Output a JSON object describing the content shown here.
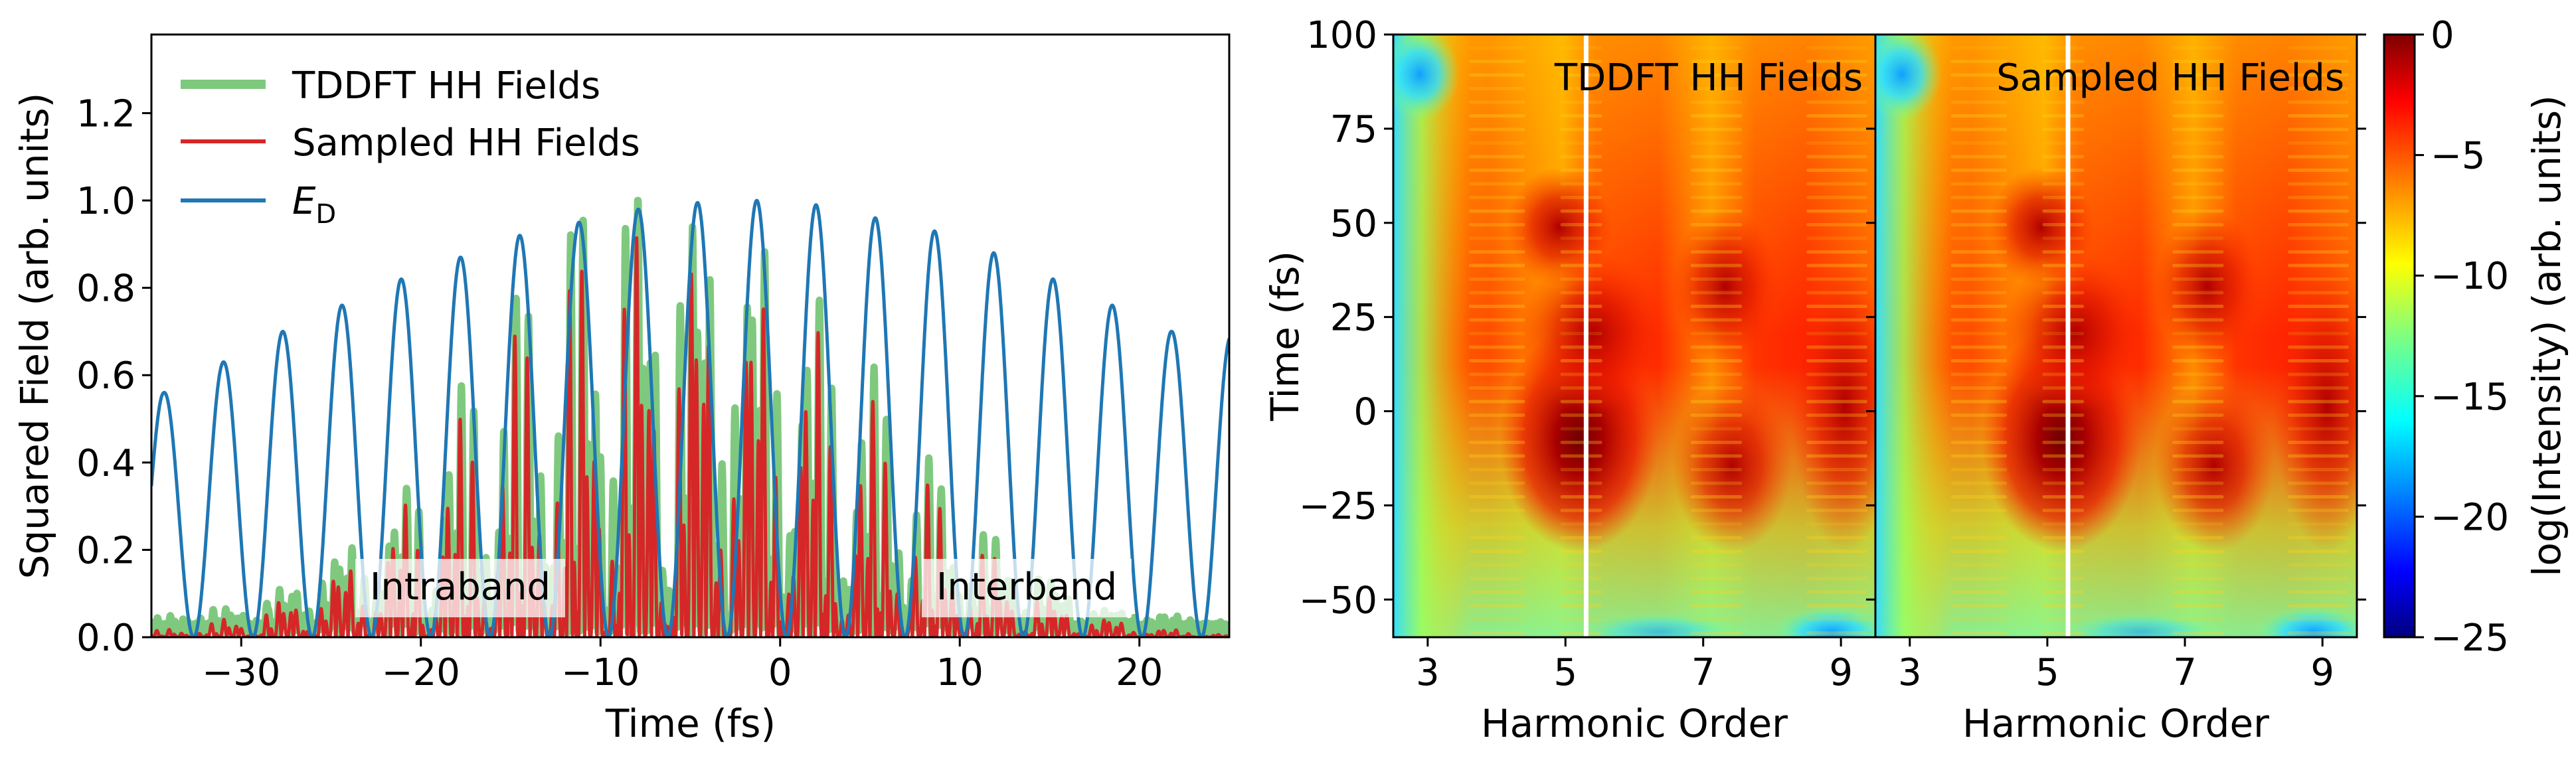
{
  "chart_data": [
    {
      "type": "line",
      "xlabel": "Time (fs)",
      "ylabel": "Squared Field (arb. units)",
      "xlim": [
        -35,
        25
      ],
      "ylim": [
        0,
        1.38
      ],
      "x_ticks": [
        -30,
        -20,
        -10,
        0,
        10,
        20
      ],
      "y_ticks": [
        0.0,
        0.2,
        0.4,
        0.6,
        0.8,
        1.0,
        1.2
      ],
      "legend_position": "top-left",
      "series": [
        {
          "name": "TDDFT HH Fields",
          "color": "#7fc97f",
          "envelope_peak": 1.0
        },
        {
          "name": "Sampled HH Fields",
          "color": "#d62728",
          "envelope_peak": 1.0
        },
        {
          "name": "E",
          "name_subscript": "D",
          "color": "#1f77b4",
          "peaks": [
            {
              "x": -34.3,
              "y": 0.56
            },
            {
              "x": -31.0,
              "y": 0.63
            },
            {
              "x": -27.7,
              "y": 0.7
            },
            {
              "x": -24.4,
              "y": 0.76
            },
            {
              "x": -21.1,
              "y": 0.82
            },
            {
              "x": -17.8,
              "y": 0.87
            },
            {
              "x": -14.5,
              "y": 0.92
            },
            {
              "x": -11.2,
              "y": 0.95
            },
            {
              "x": -7.9,
              "y": 0.98
            },
            {
              "x": -4.6,
              "y": 0.995
            },
            {
              "x": -1.3,
              "y": 1.0
            },
            {
              "x": 2.0,
              "y": 0.99
            },
            {
              "x": 5.3,
              "y": 0.96
            },
            {
              "x": 8.6,
              "y": 0.93
            },
            {
              "x": 11.9,
              "y": 0.88
            },
            {
              "x": 15.2,
              "y": 0.82
            },
            {
              "x": 18.5,
              "y": 0.76
            },
            {
              "x": 21.8,
              "y": 0.7
            },
            {
              "x": 25.1,
              "y": 0.69
            }
          ]
        }
      ],
      "annotations": [
        "Intraband",
        "Interband"
      ]
    },
    {
      "type": "heatmap",
      "title": "TDDFT HH Fields",
      "xlabel": "Harmonic Order",
      "ylabel": "Time (fs)",
      "xlim": [
        2.5,
        9.5
      ],
      "ylim": [
        -60,
        100
      ],
      "x_ticks": [
        3,
        5,
        7,
        9
      ],
      "y_ticks": [
        -50,
        -25,
        0,
        25,
        50,
        75,
        100
      ],
      "vertical_line_x": 5.3
    },
    {
      "type": "heatmap",
      "title": "Sampled HH Fields",
      "xlabel": "Harmonic Order",
      "xlim": [
        2.5,
        9.5
      ],
      "ylim": [
        -60,
        100
      ],
      "x_ticks": [
        3,
        5,
        7,
        9
      ],
      "vertical_line_x": 5.3,
      "colorbar": {
        "label": "log(Intensity) (arb. units)",
        "range": [
          -25,
          0
        ],
        "ticks": [
          0,
          -5,
          -10,
          -15,
          -20,
          -25
        ],
        "colormap": "jet"
      }
    }
  ]
}
